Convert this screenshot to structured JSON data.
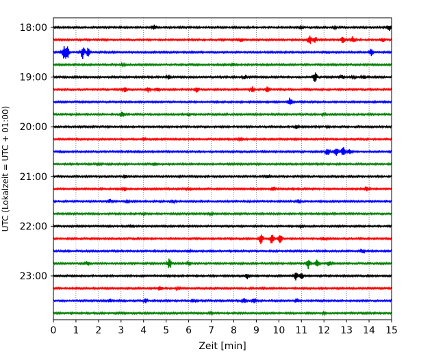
{
  "chart_data": {
    "type": "line",
    "title": "",
    "xlabel": "Zeit  [min]",
    "ylabel": "UTC (Lokalzeit = UTC + 01:00)",
    "xlim": [
      0,
      15
    ],
    "x_ticks": [
      0,
      1,
      2,
      3,
      4,
      5,
      6,
      7,
      8,
      9,
      10,
      11,
      12,
      13,
      14,
      15
    ],
    "x_gridlines": "dotted",
    "y_tick_labels": [
      "18:00",
      "19:00",
      "20:00",
      "21:00",
      "22:00",
      "23:00"
    ],
    "y_tick_traces": [
      0,
      4,
      8,
      12,
      16,
      20
    ],
    "trace_colors": [
      "#000000",
      "#ff0000",
      "#0000ff",
      "#008000"
    ],
    "traces": [
      {
        "label": "18:00",
        "events": [
          [
            4.45,
            0.25
          ],
          [
            11.0,
            0.15
          ],
          [
            12.5,
            0.12
          ],
          [
            14.9,
            0.3
          ]
        ]
      },
      {
        "label": "18:15",
        "events": [
          [
            8.3,
            0.18
          ],
          [
            11.35,
            0.6
          ],
          [
            11.6,
            0.3
          ],
          [
            12.85,
            0.45
          ],
          [
            13.3,
            0.35
          ],
          [
            14.6,
            0.2
          ]
        ]
      },
      {
        "label": "18:30",
        "events": [
          [
            0.45,
            0.65
          ],
          [
            0.6,
            0.9
          ],
          [
            1.3,
            0.85
          ],
          [
            1.55,
            0.5
          ],
          [
            14.1,
            0.4
          ]
        ]
      },
      {
        "label": "18:45",
        "events": [
          [
            3.1,
            0.12
          ],
          [
            8.0,
            0.1
          ]
        ]
      },
      {
        "label": "19:00",
        "events": [
          [
            5.1,
            0.2
          ],
          [
            8.5,
            0.2
          ],
          [
            11.6,
            0.7
          ],
          [
            12.8,
            0.2
          ],
          [
            13.3,
            0.12
          ],
          [
            13.75,
            0.2
          ]
        ]
      },
      {
        "label": "19:15",
        "events": [
          [
            3.15,
            0.3
          ],
          [
            4.2,
            0.3
          ],
          [
            4.6,
            0.28
          ],
          [
            6.35,
            0.3
          ],
          [
            8.8,
            0.3
          ],
          [
            9.5,
            0.28
          ]
        ]
      },
      {
        "label": "19:30",
        "events": [
          [
            10.5,
            0.55
          ]
        ]
      },
      {
        "label": "19:45",
        "events": [
          [
            3.05,
            0.3
          ],
          [
            6.0,
            0.12
          ],
          [
            12.0,
            0.1
          ]
        ]
      },
      {
        "label": "20:00",
        "events": [
          [
            10.8,
            0.18
          ],
          [
            12.2,
            0.12
          ]
        ]
      },
      {
        "label": "20:15",
        "events": [
          [
            4.0,
            0.1
          ],
          [
            8.3,
            0.1
          ]
        ]
      },
      {
        "label": "20:30",
        "events": [
          [
            12.15,
            0.45
          ],
          [
            12.55,
            0.7
          ],
          [
            12.85,
            0.5
          ],
          [
            13.15,
            0.35
          ]
        ]
      },
      {
        "label": "20:45",
        "events": [
          [
            4.5,
            0.25
          ],
          [
            2.0,
            0.1
          ]
        ]
      },
      {
        "label": "21:00",
        "events": [
          [
            3.2,
            0.1
          ],
          [
            9.5,
            0.1
          ]
        ]
      },
      {
        "label": "21:15",
        "events": [
          [
            3.15,
            0.2
          ],
          [
            6.0,
            0.15
          ],
          [
            9.75,
            0.2
          ],
          [
            13.9,
            0.2
          ]
        ]
      },
      {
        "label": "21:30",
        "events": [
          [
            2.5,
            0.22
          ],
          [
            3.3,
            0.2
          ],
          [
            5.3,
            0.12
          ],
          [
            10.9,
            0.15
          ]
        ]
      },
      {
        "label": "21:45",
        "events": [
          [
            4.0,
            0.1
          ],
          [
            7.0,
            0.1
          ]
        ]
      },
      {
        "label": "22:00",
        "events": [
          [
            3.5,
            0.1
          ],
          [
            11.0,
            0.12
          ]
        ]
      },
      {
        "label": "22:15",
        "events": [
          [
            9.2,
            0.65
          ],
          [
            9.7,
            0.7
          ],
          [
            10.05,
            0.55
          ],
          [
            12.0,
            0.2
          ]
        ]
      },
      {
        "label": "22:30",
        "events": [
          [
            6.0,
            0.12
          ],
          [
            13.7,
            0.25
          ]
        ]
      },
      {
        "label": "22:45",
        "events": [
          [
            1.5,
            0.25
          ],
          [
            5.15,
            0.7
          ],
          [
            6.0,
            0.25
          ],
          [
            11.3,
            0.55
          ],
          [
            11.7,
            0.5
          ],
          [
            12.25,
            0.3
          ]
        ]
      },
      {
        "label": "23:00",
        "events": [
          [
            8.6,
            0.28
          ],
          [
            10.75,
            0.65
          ],
          [
            11.0,
            0.45
          ]
        ]
      },
      {
        "label": "23:15",
        "events": [
          [
            4.75,
            0.25
          ],
          [
            5.5,
            0.12
          ]
        ]
      },
      {
        "label": "23:30",
        "events": [
          [
            2.5,
            0.15
          ],
          [
            4.1,
            0.2
          ],
          [
            6.2,
            0.15
          ],
          [
            8.45,
            0.25
          ],
          [
            8.9,
            0.25
          ],
          [
            10.8,
            0.18
          ]
        ]
      },
      {
        "label": "23:45",
        "events": [
          [
            7.0,
            0.1
          ],
          [
            12.0,
            0.1
          ]
        ]
      }
    ]
  }
}
